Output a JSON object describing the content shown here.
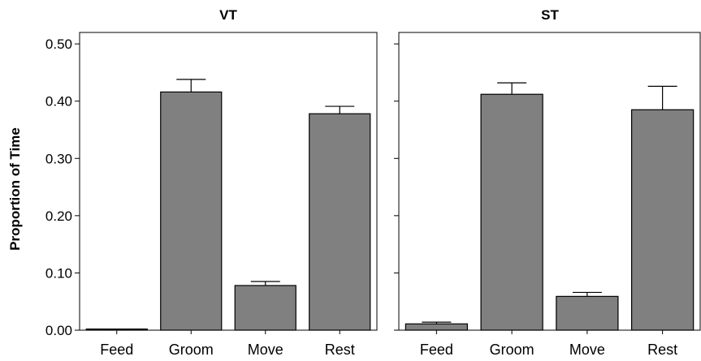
{
  "chart_data": [
    {
      "type": "bar",
      "title": "VT",
      "categories": [
        "Feed",
        "Groom",
        "Move",
        "Rest"
      ],
      "values": [
        0.002,
        0.416,
        0.078,
        0.378
      ],
      "error_upper": [
        0.002,
        0.438,
        0.085,
        0.391
      ],
      "ylabel": "Proportion of Time",
      "ylim": [
        0,
        0.52
      ],
      "yticks": [
        "0.00",
        "0.10",
        "0.20",
        "0.30",
        "0.40",
        "0.50"
      ],
      "bar_color": "#808080"
    },
    {
      "type": "bar",
      "title": "ST",
      "categories": [
        "Feed",
        "Groom",
        "Move",
        "Rest"
      ],
      "values": [
        0.011,
        0.412,
        0.059,
        0.385
      ],
      "error_upper": [
        0.014,
        0.432,
        0.066,
        0.426
      ],
      "ylabel": "",
      "ylim": [
        0,
        0.52
      ],
      "bar_color": "#808080"
    }
  ]
}
